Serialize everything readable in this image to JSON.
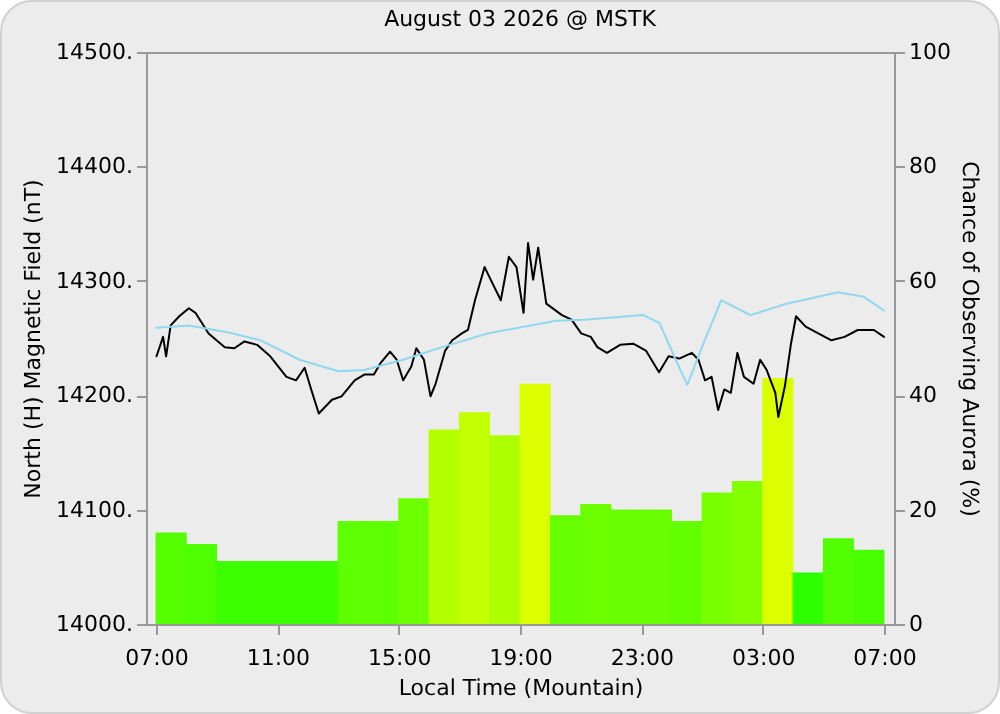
{
  "chart_data": {
    "type": "bar",
    "title": "August 03 2026 @ MSTK",
    "xlabel": "Local Time (Mountain)",
    "ylabel": "North (H) Magnetic Field (nT)",
    "y2label": "Chance of Observing Aurora (%)",
    "xlim": [
      "2026-08-03T07:00",
      "2026-08-04T07:00"
    ],
    "xticks": [
      {
        "value": "2026-08-03T07:00",
        "label": "07:00"
      },
      {
        "value": "2026-08-03T11:00",
        "label": "11:00"
      },
      {
        "value": "2026-08-03T15:00",
        "label": "15:00"
      },
      {
        "value": "2026-08-03T19:00",
        "label": "19:00"
      },
      {
        "value": "2026-08-03T23:00",
        "label": "23:00"
      },
      {
        "value": "2026-08-04T03:00",
        "label": "03:00"
      },
      {
        "value": "2026-08-04T07:00",
        "label": "07:00"
      }
    ],
    "ylim": [
      14000,
      14500
    ],
    "yticks": [
      {
        "value": 14000,
        "label": "14000."
      },
      {
        "value": 14100,
        "label": "14100."
      },
      {
        "value": 14200,
        "label": "14200."
      },
      {
        "value": 14300,
        "label": "14300."
      },
      {
        "value": 14400,
        "label": "14400."
      },
      {
        "value": 14500,
        "label": "14500."
      }
    ],
    "y2lim": [
      0,
      100
    ],
    "y2ticks": [
      0,
      20,
      40,
      60,
      80,
      100
    ],
    "series": [
      {
        "axis": "y2",
        "x": [
          "2026-08-03T07:30",
          "2026-08-03T08:30",
          "2026-08-03T09:30",
          "2026-08-03T10:30",
          "2026-08-03T11:30",
          "2026-08-03T12:30",
          "2026-08-03T13:30",
          "2026-08-03T14:30",
          "2026-08-03T15:30",
          "2026-08-03T16:30",
          "2026-08-03T17:30",
          "2026-08-03T18:30",
          "2026-08-03T19:30",
          "2026-08-03T20:30",
          "2026-08-03T21:30",
          "2026-08-03T22:30",
          "2026-08-03T23:30",
          "2026-08-04T00:30",
          "2026-08-04T01:30",
          "2026-08-04T02:30",
          "2026-08-04T03:30",
          "2026-08-04T04:30",
          "2026-08-04T05:30",
          "2026-08-04T06:30"
        ],
        "values": [
          16,
          14,
          11,
          11,
          11,
          11,
          18,
          18,
          22,
          34,
          37,
          33,
          42,
          19,
          21,
          20,
          20,
          18,
          23,
          25,
          43,
          9,
          15,
          13
        ],
        "colors": [
          "#55ff00",
          "#4dff00",
          "#3cff00",
          "#3cff00",
          "#3cff00",
          "#3cff00",
          "#5eff00",
          "#5eff00",
          "#6cff00",
          "#b4ff00",
          "#c2ff00",
          "#adff00",
          "#dcff00",
          "#66ff00",
          "#6cff00",
          "#6aff00",
          "#6aff00",
          "#62ff00",
          "#78ff00",
          "#84ff00",
          "#dcff00",
          "#2eff00",
          "#52ff00",
          "#48ff00"
        ]
      },
      {
        "type": "line",
        "color": "#000000",
        "x": [
          "2026-08-03T07:01",
          "2026-08-03T07:14",
          "2026-08-03T07:20",
          "2026-08-03T07:29",
          "2026-08-03T07:46",
          "2026-08-03T08:05",
          "2026-08-03T08:18",
          "2026-08-03T08:44",
          "2026-08-03T09:16",
          "2026-08-03T09:35",
          "2026-08-03T09:55",
          "2026-08-03T10:20",
          "2026-08-03T10:46",
          "2026-08-03T11:18",
          "2026-08-03T11:37",
          "2026-08-03T11:54",
          "2026-08-03T12:07",
          "2026-08-03T12:22",
          "2026-08-03T12:48",
          "2026-08-03T13:07",
          "2026-08-03T13:33",
          "2026-08-03T13:52",
          "2026-08-03T14:11",
          "2026-08-03T14:24",
          "2026-08-03T14:43",
          "2026-08-03T14:56",
          "2026-08-03T15:09",
          "2026-08-03T15:25",
          "2026-08-03T15:35",
          "2026-08-03T15:50",
          "2026-08-03T16:03",
          "2026-08-03T16:13",
          "2026-08-03T16:32",
          "2026-08-03T16:46",
          "2026-08-03T17:05",
          "2026-08-03T17:17",
          "2026-08-03T17:31",
          "2026-08-03T17:50",
          "2026-08-03T18:02",
          "2026-08-03T18:22",
          "2026-08-03T18:38",
          "2026-08-03T18:53",
          "2026-08-03T19:07",
          "2026-08-03T19:16",
          "2026-08-03T19:26",
          "2026-08-03T19:36",
          "2026-08-03T19:52",
          "2026-08-03T20:23",
          "2026-08-03T20:42",
          "2026-08-03T21:01",
          "2026-08-03T21:20",
          "2026-08-03T21:33",
          "2026-08-03T21:52",
          "2026-08-03T22:18",
          "2026-08-03T22:44",
          "2026-08-03T23:09",
          "2026-08-03T23:35",
          "2026-08-03T23:54",
          "2026-08-04T00:15",
          "2026-08-04T00:40",
          "2026-08-04T00:53",
          "2026-08-04T01:06",
          "2026-08-04T01:19",
          "2026-08-04T01:32",
          "2026-08-04T01:44",
          "2026-08-04T01:57",
          "2026-08-04T02:10",
          "2026-08-04T02:23",
          "2026-08-04T02:42",
          "2026-08-04T02:55",
          "2026-08-04T03:08",
          "2026-08-04T03:25",
          "2026-08-04T03:31",
          "2026-08-04T03:44",
          "2026-08-04T03:56",
          "2026-08-04T04:06",
          "2026-08-04T04:25",
          "2026-08-04T04:50",
          "2026-08-04T05:16",
          "2026-08-04T05:42",
          "2026-08-04T06:08",
          "2026-08-04T06:40",
          "2026-08-04T07:00"
        ],
        "values": [
          14234,
          14251,
          14234,
          14261,
          14269,
          14276,
          14272,
          14254,
          14242,
          14241,
          14247,
          14244,
          14234,
          14216,
          14213,
          14224,
          14205,
          14184,
          14196,
          14199,
          14213,
          14218,
          14218,
          14228,
          14238,
          14231,
          14213,
          14225,
          14241,
          14231,
          14199,
          14210,
          14239,
          14248,
          14254,
          14257,
          14283,
          14312,
          14301,
          14283,
          14321,
          14312,
          14272,
          14333,
          14301,
          14329,
          14280,
          14270,
          14266,
          14254,
          14251,
          14242,
          14237,
          14244,
          14245,
          14239,
          14220,
          14234,
          14232,
          14237,
          14231,
          14213,
          14216,
          14187,
          14205,
          14202,
          14237,
          14216,
          14210,
          14231,
          14222,
          14202,
          14181,
          14208,
          14245,
          14269,
          14260,
          14254,
          14248,
          14251,
          14257,
          14257,
          14251
        ]
      },
      {
        "type": "line",
        "color": "#8fd8f0",
        "x": [
          "2026-08-03T07:00",
          "2026-08-03T08:05",
          "2026-08-03T09:22",
          "2026-08-03T10:27",
          "2026-08-03T11:44",
          "2026-08-03T13:01",
          "2026-08-03T13:52",
          "2026-08-03T15:09",
          "2026-08-03T16:26",
          "2026-08-03T17:56",
          "2026-08-03T20:11",
          "2026-08-03T21:08",
          "2026-08-03T23:04",
          "2026-08-03T23:36",
          "2026-08-04T00:08",
          "2026-08-04T00:31",
          "2026-08-04T01:00",
          "2026-08-04T01:38",
          "2026-08-04T02:36",
          "2026-08-04T03:47",
          "2026-08-04T05:29",
          "2026-08-04T06:20",
          "2026-08-04T07:00"
        ],
        "values": [
          14259,
          14261,
          14255,
          14248,
          14231,
          14221,
          14222,
          14231,
          14242,
          14254,
          14265,
          14266,
          14270,
          14263,
          14231,
          14209,
          14242,
          14283,
          14270,
          14280,
          14290,
          14286,
          14274
        ]
      }
    ]
  }
}
